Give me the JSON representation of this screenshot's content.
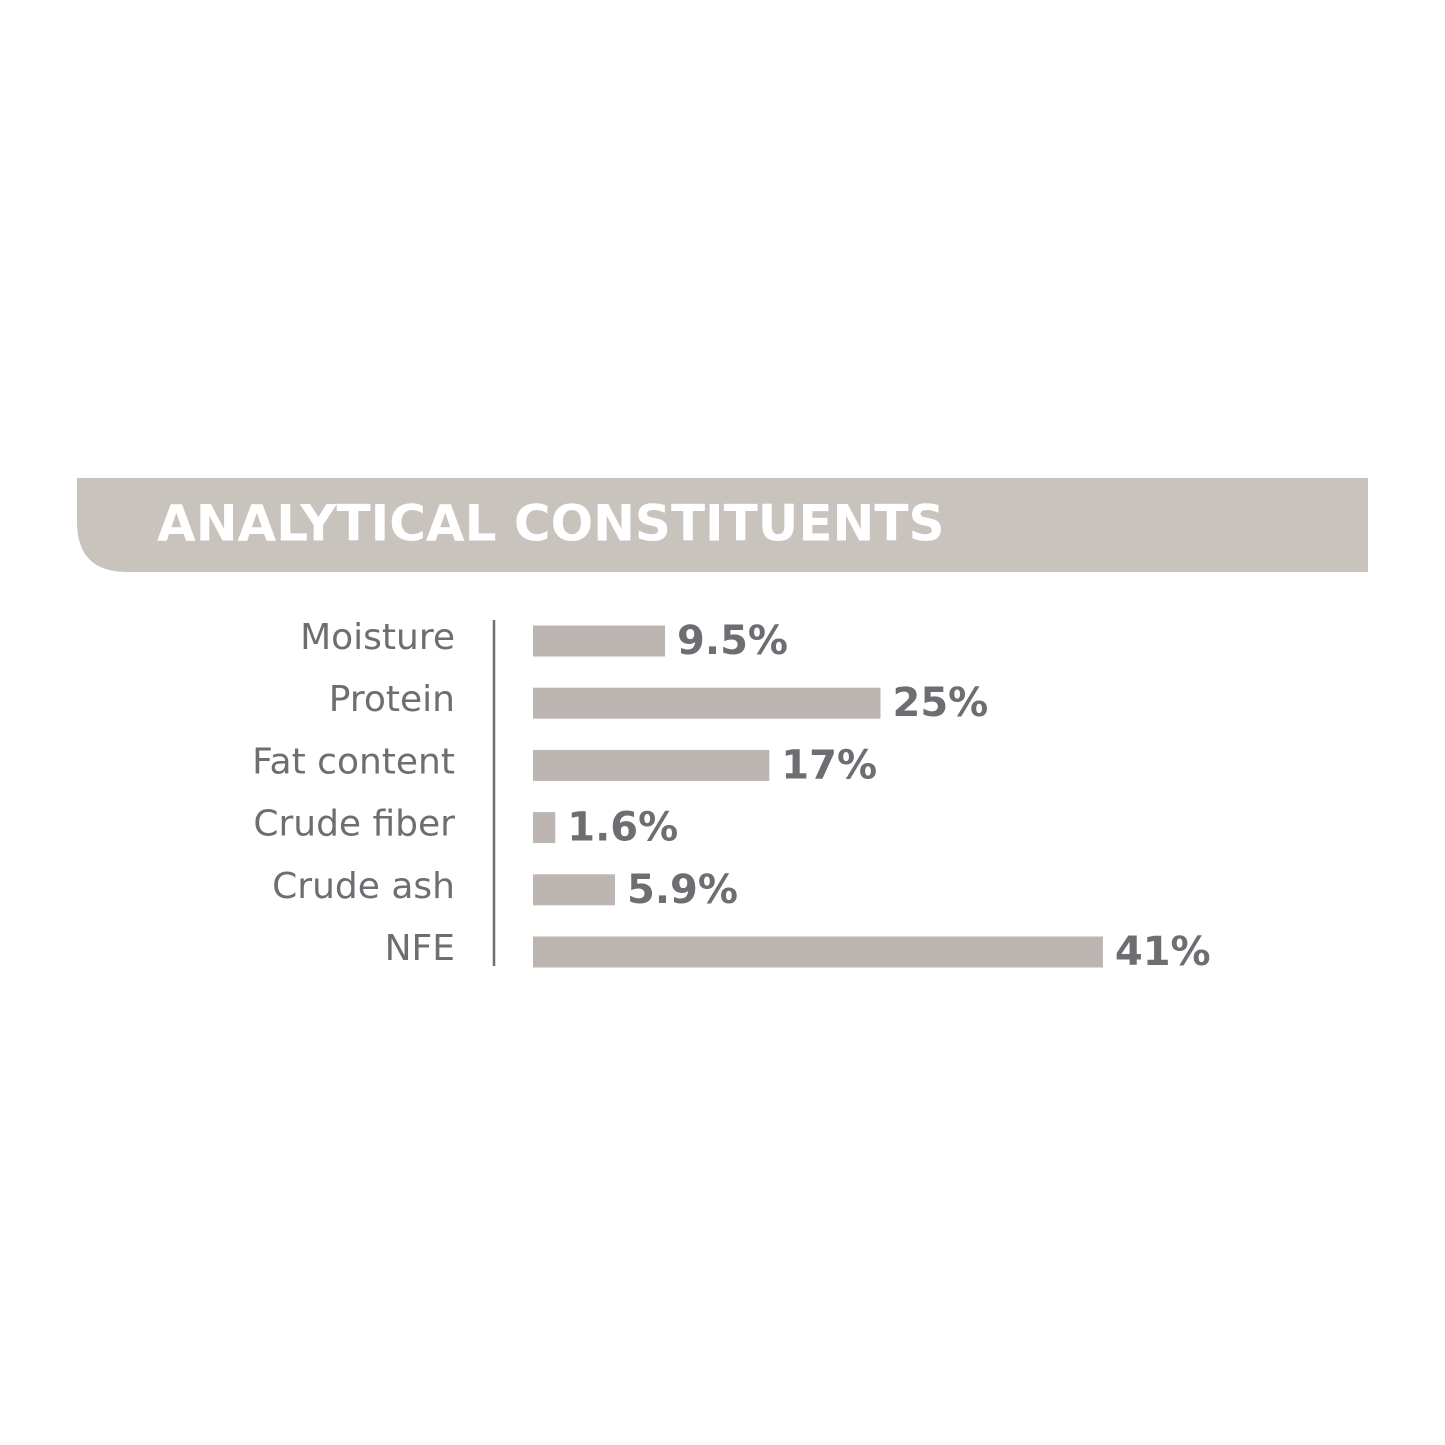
{
  "chart_data": {
    "type": "bar",
    "orientation": "horizontal",
    "title": "ANALYTICAL CONSTITUENTS",
    "categories": [
      "Moisture",
      "Protein",
      "Fat content",
      "Crude fiber",
      "Crude ash",
      "NFE"
    ],
    "values": [
      9.5,
      25,
      17,
      1.6,
      5.9,
      41
    ],
    "value_labels": [
      "9.5%",
      "25%",
      "17%",
      "1.6%",
      "5.9%",
      "41%"
    ],
    "color": "#bdb5b2"
  }
}
